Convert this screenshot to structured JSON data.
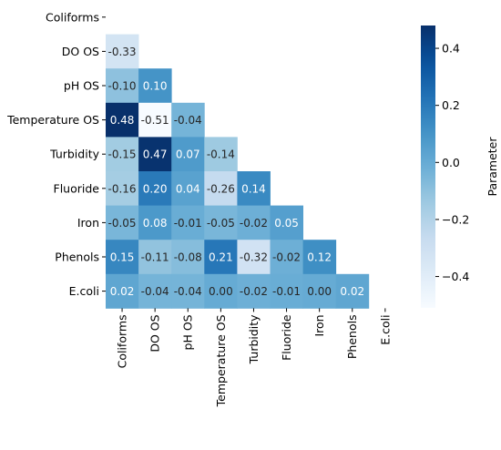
{
  "chart_data": {
    "type": "heatmap",
    "title": "",
    "xlabel": "",
    "ylabel": "",
    "colorbar_label": "Parameter",
    "colormap": "Blues",
    "vmin": -0.51,
    "vmax": 0.48,
    "colorbar_ticks": [
      0.4,
      0.2,
      0.0,
      -0.2,
      -0.4
    ],
    "colorbar_tick_labels": [
      "0.4",
      "0.2",
      "0.0",
      "−0.2",
      "−0.4"
    ],
    "mask": "upper-triangle-including-diagonal",
    "row_labels": [
      "Coliforms",
      "DO OS",
      "pH OS",
      "Temperature OS",
      "Turbidity",
      "Fluoride",
      "Iron",
      "Phenols",
      "E.coli"
    ],
    "col_labels": [
      "Coliforms",
      "DO OS",
      "pH OS",
      "Temperature OS",
      "Turbidity",
      "Fluoride",
      "Iron",
      "Phenols",
      "E.coli"
    ],
    "cells": [
      [],
      [
        -0.33
      ],
      [
        -0.1,
        0.1
      ],
      [
        0.48,
        -0.51,
        -0.04
      ],
      [
        -0.15,
        0.47,
        0.07,
        -0.14
      ],
      [
        -0.16,
        0.2,
        0.04,
        -0.26,
        0.14
      ],
      [
        -0.05,
        0.08,
        -0.01,
        -0.05,
        -0.02,
        0.05
      ],
      [
        0.15,
        -0.11,
        -0.08,
        0.21,
        -0.32,
        -0.02,
        0.12
      ],
      [
        0.02,
        -0.04,
        -0.04,
        0.0,
        -0.02,
        -0.01,
        0.0,
        0.02
      ]
    ]
  }
}
